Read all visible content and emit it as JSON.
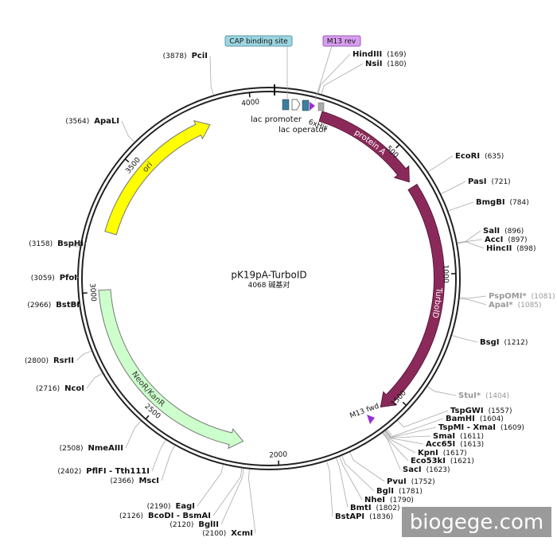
{
  "map": {
    "name": "pK19pA-TurboID",
    "length": 4068,
    "length_unit": "碱基对",
    "ticks": [
      500,
      1000,
      1500,
      2000,
      2500,
      3000,
      3500,
      4000
    ],
    "features": [
      "protein A",
      "TurboID",
      "NeoR/KanR",
      "ori",
      "lac promoter",
      "lac operator",
      "6xHis",
      "CAP binding site",
      "M13 rev",
      "M13 fwd"
    ],
    "sites": [
      {
        "name": "HindIII",
        "position": "(169)"
      },
      {
        "name": "NsiI",
        "position": "(180)"
      },
      {
        "name": "EcoRI",
        "position": "(635)"
      },
      {
        "name": "PasI",
        "position": "(721)"
      },
      {
        "name": "BmgBI",
        "position": "(784)"
      },
      {
        "name": "SalI",
        "position": "(896)"
      },
      {
        "name": "AccI",
        "position": "(897)"
      },
      {
        "name": "HincII",
        "position": "(898)"
      },
      {
        "name": "PspOMI*",
        "position": "(1081)"
      },
      {
        "name": "ApaI*",
        "position": "(1085)"
      },
      {
        "name": "BsgI",
        "position": "(1212)"
      },
      {
        "name": "StuI*",
        "position": "(1404)"
      },
      {
        "name": "TspGWI",
        "position": "(1557)"
      },
      {
        "name": "BamHI",
        "position": "(1604)"
      },
      {
        "name": "TspMI - XmaI",
        "position": "(1609)"
      },
      {
        "name": "SmaI",
        "position": "(1611)"
      },
      {
        "name": "Acc65I",
        "position": "(1613)"
      },
      {
        "name": "KpnI",
        "position": "(1617)"
      },
      {
        "name": "Eco53kI",
        "position": "(1621)"
      },
      {
        "name": "SacI",
        "position": "(1623)"
      },
      {
        "name": "PvuI",
        "position": "(1752)"
      },
      {
        "name": "BglI",
        "position": "(1781)"
      },
      {
        "name": "NheI",
        "position": "(1790)"
      },
      {
        "name": "BmtI",
        "position": "(1802)"
      },
      {
        "name": "BstAPI",
        "position": "(1836)"
      },
      {
        "name": "XcmI",
        "position": "(2100)"
      },
      {
        "name": "BglII",
        "position": "(2120)"
      },
      {
        "name": "BcoDI - BsmAI",
        "position": "(2126)"
      },
      {
        "name": "EagI",
        "position": "(2190)"
      },
      {
        "name": "MscI",
        "position": "(2366)"
      },
      {
        "name": "PflFI - Tth111I",
        "position": "(2402)"
      },
      {
        "name": "NmeAIII",
        "position": "(2508)"
      },
      {
        "name": "NcoI",
        "position": "(2716)"
      },
      {
        "name": "RsrII",
        "position": "(2800)"
      },
      {
        "name": "BstBI",
        "position": "(2966)"
      },
      {
        "name": "PfoI",
        "position": "(3059)"
      },
      {
        "name": "BspHI",
        "position": "(3158)"
      },
      {
        "name": "ApaLI",
        "position": "(3564)"
      },
      {
        "name": "PciI",
        "position": "(3878)"
      }
    ],
    "watermark": "biogege.com"
  }
}
